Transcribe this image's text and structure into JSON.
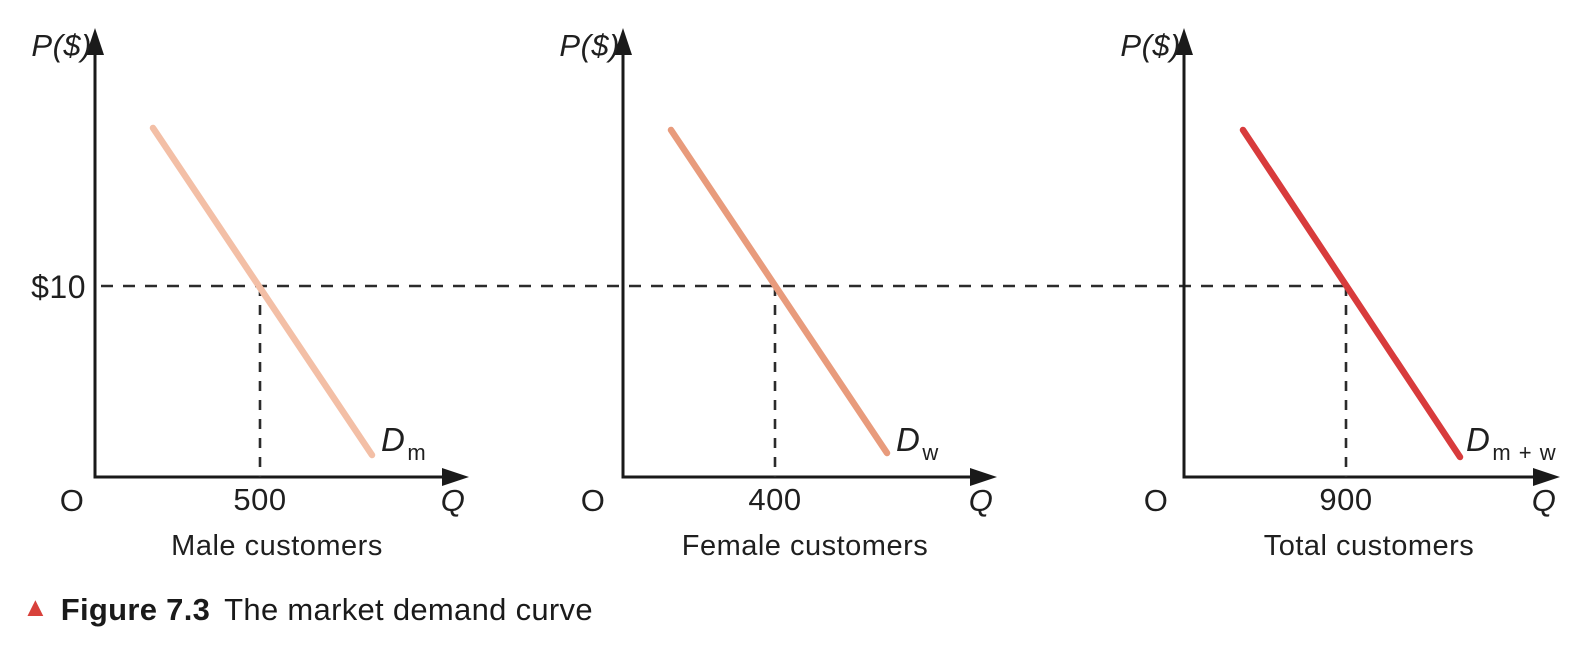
{
  "figure": {
    "caption_marker": "▲",
    "caption_marker_color": "#d8413b",
    "caption_label": "Figure 7.3",
    "caption_text": "The market demand curve"
  },
  "style": {
    "axis_color": "#1a1a1a",
    "dashed_line_color": "#2b2b2b",
    "text_color": "#1f1f1f"
  },
  "chart_data": [
    {
      "type": "line",
      "title": "Male customers",
      "ylabel": "P($)",
      "xlabel": "Q",
      "origin_label": "O",
      "price_label": "$10",
      "x_tick_label": "500",
      "point": {
        "quantity": 500,
        "price": 10
      },
      "curve_label_main": "D",
      "curve_label_sub": "m",
      "line_color": "#f3bfa6",
      "guides": "dashed horizontal at $10, dashed vertical at Q=500"
    },
    {
      "type": "line",
      "title": "Female customers",
      "ylabel": "P($)",
      "xlabel": "Q",
      "origin_label": "O",
      "price_label": "",
      "x_tick_label": "400",
      "point": {
        "quantity": 400,
        "price": 10
      },
      "curve_label_main": "D",
      "curve_label_sub": "w",
      "line_color": "#e89b7c",
      "guides": "dashed horizontal at $10, dashed vertical at Q=400"
    },
    {
      "type": "line",
      "title": "Total customers",
      "ylabel": "P($)",
      "xlabel": "Q",
      "origin_label": "O",
      "price_label": "",
      "x_tick_label": "900",
      "point": {
        "quantity": 900,
        "price": 10
      },
      "curve_label_main": "D",
      "curve_label_sub": "m + w",
      "line_color": "#d83b3c",
      "guides": "dashed horizontal at $10, dashed vertical at Q=900"
    }
  ]
}
